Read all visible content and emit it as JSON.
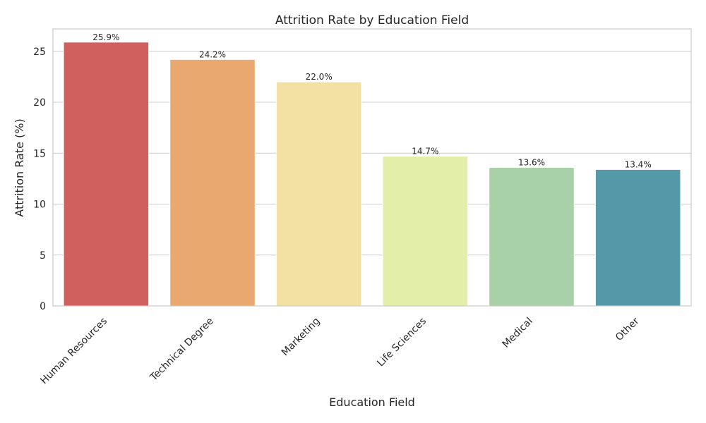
{
  "chart_data": {
    "type": "bar",
    "title": "Attrition Rate by Education Field",
    "xlabel": "Education Field",
    "ylabel": "Attrition Rate (%)",
    "categories": [
      "Human Resources",
      "Technical Degree",
      "Marketing",
      "Life Sciences",
      "Medical",
      "Other"
    ],
    "values": [
      25.9,
      24.2,
      22.0,
      14.7,
      13.6,
      13.4
    ],
    "data_labels": [
      "25.9%",
      "24.2%",
      "22.0%",
      "14.7%",
      "13.6%",
      "13.4%"
    ],
    "colors": [
      "#d0605e",
      "#e9a86f",
      "#f3e0a3",
      "#e3efa9",
      "#a8d1a8",
      "#5598a7"
    ],
    "ylim": [
      0,
      27.2
    ],
    "yticks": [
      0,
      5,
      10,
      15,
      20,
      25
    ],
    "grid": true,
    "legend": "none"
  }
}
